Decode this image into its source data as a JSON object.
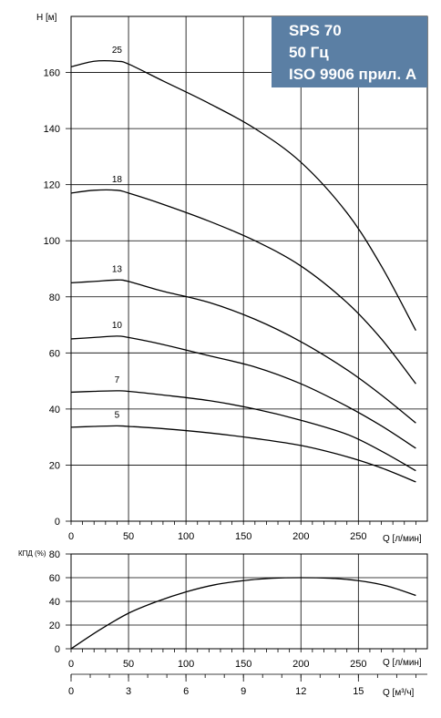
{
  "info_box": {
    "line1": "SPS 70",
    "line2": "50 Гц",
    "line3": "ISO 9906 прил. А"
  },
  "chart_data": [
    {
      "type": "line",
      "title": "",
      "xlabel": "Q [л/мин]",
      "ylabel": "H [м]",
      "xlim": [
        0,
        310
      ],
      "ylim": [
        0,
        180
      ],
      "xticks": [
        0,
        50,
        100,
        150,
        200,
        250
      ],
      "yticks": [
        0,
        20,
        40,
        60,
        80,
        100,
        120,
        140,
        160
      ],
      "grid": true,
      "series": [
        {
          "name": "25",
          "x": [
            0,
            20,
            40,
            50,
            80,
            120,
            160,
            200,
            240,
            270,
            300
          ],
          "y": [
            162,
            164,
            164,
            163,
            157,
            149,
            140,
            128,
            110,
            91,
            68
          ]
        },
        {
          "name": "18",
          "x": [
            0,
            20,
            40,
            50,
            80,
            120,
            160,
            200,
            240,
            270,
            300
          ],
          "y": [
            117,
            118,
            118,
            117,
            113,
            107,
            100,
            91,
            78,
            65,
            49
          ]
        },
        {
          "name": "13",
          "x": [
            0,
            20,
            40,
            50,
            80,
            120,
            160,
            200,
            240,
            270,
            300
          ],
          "y": [
            85,
            85.5,
            86,
            85.5,
            82,
            78,
            72,
            64,
            54,
            45,
            35
          ]
        },
        {
          "name": "10",
          "x": [
            0,
            20,
            40,
            50,
            80,
            120,
            160,
            200,
            240,
            270,
            300
          ],
          "y": [
            65,
            65.5,
            66,
            65.5,
            63,
            59,
            55,
            49,
            41,
            34,
            26
          ]
        },
        {
          "name": "7",
          "x": [
            0,
            20,
            40,
            50,
            80,
            120,
            160,
            200,
            240,
            270,
            300
          ],
          "y": [
            46,
            46.3,
            46.5,
            46.3,
            45,
            43,
            40,
            36,
            31,
            25,
            18
          ]
        },
        {
          "name": "5",
          "x": [
            0,
            20,
            40,
            50,
            80,
            120,
            160,
            200,
            240,
            270,
            300
          ],
          "y": [
            33.5,
            33.8,
            34,
            33.8,
            33,
            31.5,
            29.5,
            27,
            23,
            19,
            14
          ]
        }
      ]
    },
    {
      "type": "line",
      "title": "",
      "xlabel": "Q [л/мин]",
      "ylabel": "КПД (%)",
      "xlim": [
        0,
        310
      ],
      "ylim": [
        0,
        80
      ],
      "xticks": [
        0,
        50,
        100,
        150,
        200,
        250
      ],
      "yticks": [
        0,
        20,
        40,
        60,
        80
      ],
      "grid": true,
      "series": [
        {
          "name": "",
          "x": [
            0,
            25,
            50,
            75,
            100,
            125,
            150,
            175,
            200,
            225,
            250,
            275,
            300
          ],
          "y": [
            0,
            16,
            30,
            40,
            48,
            54,
            57.5,
            59.5,
            60,
            59.5,
            57.5,
            53,
            45
          ]
        }
      ]
    },
    {
      "type": "line",
      "title": "",
      "xlabel": "Q [м³/ч]",
      "ylabel": "",
      "xlim": [
        0,
        18.6
      ],
      "xticks": [
        0,
        3,
        6,
        9,
        12,
        15
      ],
      "series": []
    }
  ]
}
